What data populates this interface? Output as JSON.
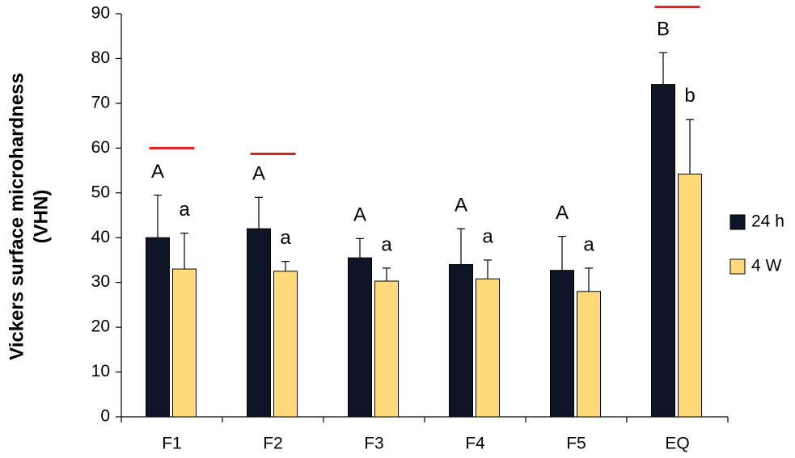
{
  "chart_data": {
    "type": "bar",
    "ylabel": [
      "Vickers surface microhardness",
      "(VHN)"
    ],
    "categories": [
      "F1",
      "F2",
      "F3",
      "F4",
      "F5",
      "EQ"
    ],
    "series": [
      {
        "name": "24 h",
        "color": "#0d1526",
        "values": [
          40,
          42,
          35.5,
          34,
          32.7,
          74.2
        ],
        "errors": [
          9.5,
          7,
          4.3,
          8,
          7.6,
          7.1
        ],
        "letters": [
          "A",
          "A",
          "A",
          "A",
          "A",
          "B"
        ]
      },
      {
        "name": "4 W",
        "color": "#ffd97a",
        "values": [
          33,
          32.5,
          30.3,
          30.8,
          28,
          54.2
        ],
        "errors": [
          8,
          2.2,
          2.9,
          4.2,
          5.2,
          12.2
        ],
        "letters": [
          "a",
          "a",
          "a",
          "a",
          "a",
          "b"
        ]
      }
    ],
    "ylim": [
      0,
      90
    ],
    "yticks": [
      0,
      10,
      20,
      30,
      40,
      50,
      60,
      70,
      80,
      90
    ],
    "legend": "right"
  }
}
